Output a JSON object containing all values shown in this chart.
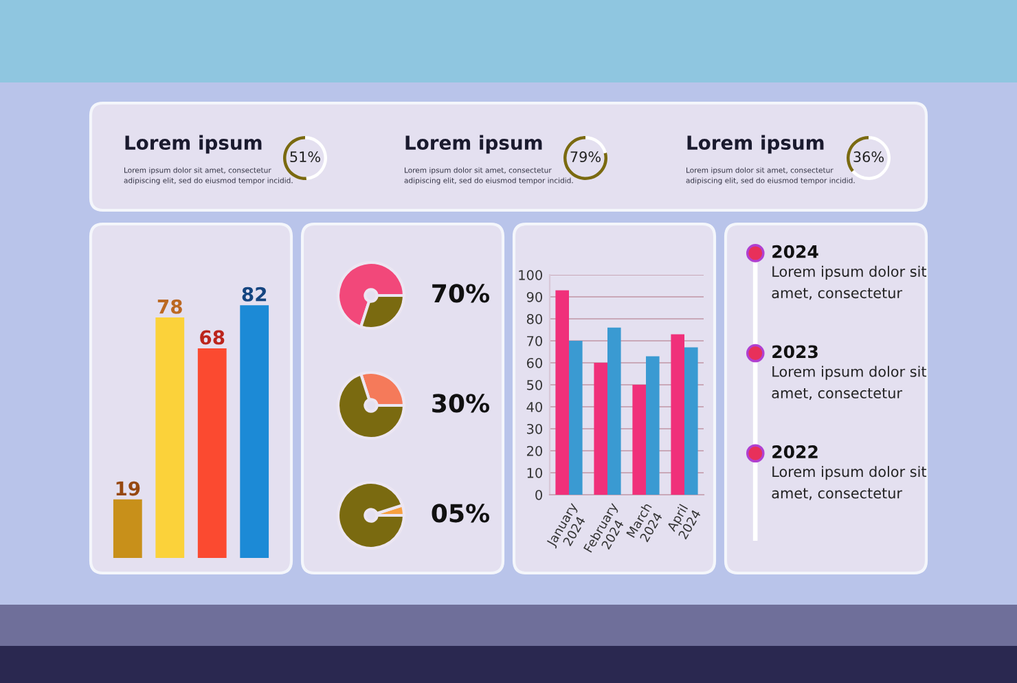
{
  "chart_data": [
    {
      "type": "donut",
      "title": "Lorem ipsum",
      "subtitle": "Lorem ipsum dolor sit amet, consectetur\nadipiscing elit, sed do eiusmod tempor incidid.",
      "categories": [
        null,
        null
      ],
      "values": [
        51,
        49
      ],
      "colors": [
        "#7a6a10",
        "#ffffff"
      ],
      "value_labels": [
        "51%",
        null
      ]
    },
    {
      "type": "donut",
      "title": "Lorem ipsum",
      "subtitle": "Lorem ipsum dolor sit amet, consectetur\nadipiscing elit, sed do eiusmod tempor incidid.",
      "categories": [
        null,
        null
      ],
      "values": [
        79,
        21
      ],
      "colors": [
        "#7a6a10",
        "#ffffff"
      ],
      "value_labels": [
        "79%",
        null
      ]
    },
    {
      "type": "donut",
      "title": "Lorem ipsum",
      "subtitle": "Lorem ipsum dolor sit amet, consectetur\nadipiscing elit, sed do eiusmod tempor incidid.",
      "categories": [
        null,
        null
      ],
      "values": [
        36,
        64
      ],
      "colors": [
        "#7a6a10",
        "#ffffff"
      ],
      "value_labels": [
        "36%",
        null
      ]
    },
    {
      "type": "bar",
      "categories": [
        null,
        null,
        null,
        null
      ],
      "values": [
        19,
        78,
        68,
        82
      ],
      "colors": [
        "#c8901a",
        "#fbd23a",
        "#fb4a30",
        "#1c8ad6"
      ],
      "data_labels": true
    },
    {
      "type": "donut",
      "categories": [
        null,
        null
      ],
      "values": [
        70,
        30
      ],
      "colors": [
        "#f2487a",
        "#7a6a10"
      ],
      "value_labels": [
        "70%",
        null
      ]
    },
    {
      "type": "donut",
      "categories": [
        null,
        null
      ],
      "values": [
        30,
        70
      ],
      "colors": [
        "#f57a5a",
        "#7a6a10"
      ],
      "value_labels": [
        "30%",
        null
      ]
    },
    {
      "type": "donut",
      "categories": [
        null,
        null
      ],
      "values": [
        5,
        95
      ],
      "colors": [
        "#f7a040",
        "#7a6a10"
      ],
      "value_labels": [
        "05%",
        null
      ]
    },
    {
      "type": "bar",
      "categories": [
        "January\n2024",
        "February\n2024",
        "March\n2024",
        "April\n2024"
      ],
      "series": [
        {
          "color": "#f0307a",
          "values": [
            93,
            60,
            50,
            73
          ]
        },
        {
          "color": "#3a9ad2",
          "values": [
            70,
            76,
            63,
            67
          ]
        }
      ],
      "ylim": [
        0,
        100
      ],
      "yticks": [
        0,
        10,
        20,
        30,
        40,
        50,
        60,
        70,
        80,
        90,
        100
      ],
      "grid": "y"
    },
    {
      "type": "other",
      "annotations": [
        "2024",
        "Lorem ipsum dolor sit\namet, consectetur",
        "2023",
        "Lorem ipsum dolor sit\namet, consectetur",
        "2022",
        "Lorem ipsum dolor sit\namet, consectetur"
      ]
    }
  ]
}
